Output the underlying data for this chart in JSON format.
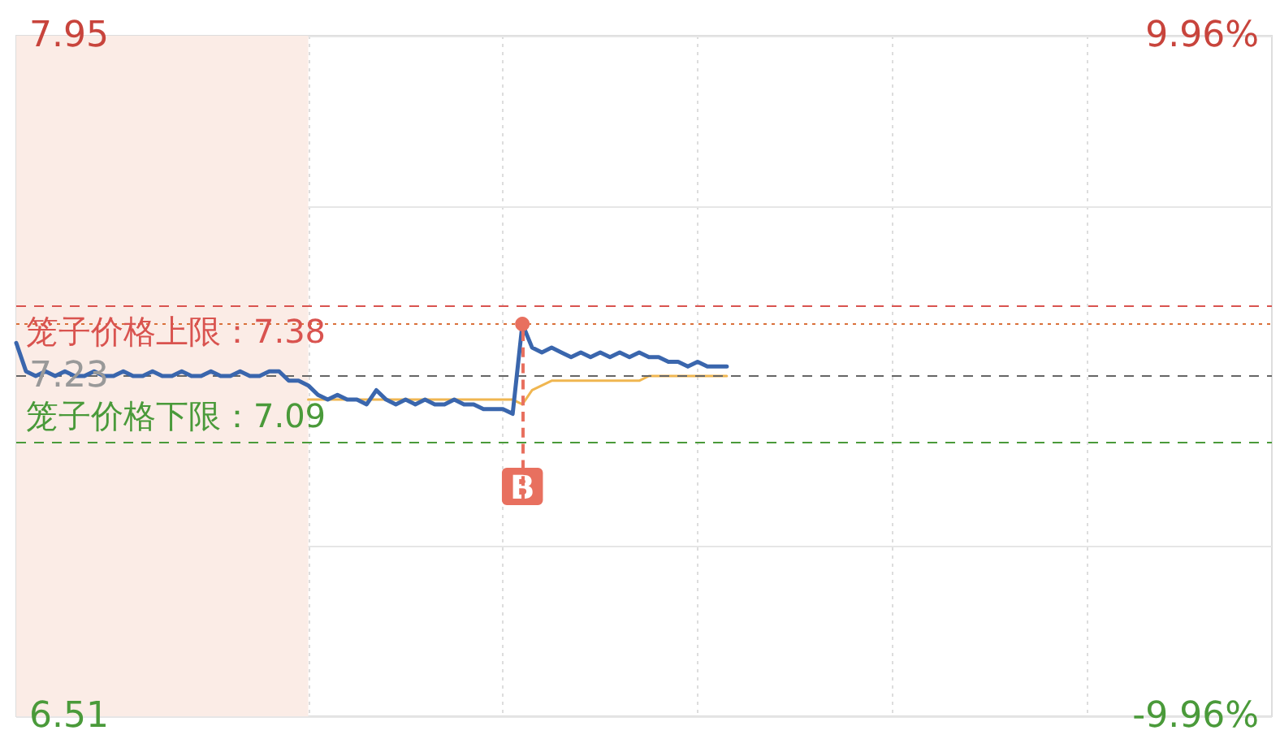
{
  "chart_data": {
    "type": "line",
    "categories": [
      null,
      null,
      null,
      null,
      null,
      null,
      null,
      null,
      null,
      null,
      null,
      null,
      null,
      null,
      null,
      null,
      null,
      null,
      null,
      null,
      null,
      null,
      null,
      null,
      null,
      null,
      null,
      null,
      null,
      null,
      null,
      null,
      null,
      null,
      null,
      null,
      null,
      null,
      null,
      null,
      null,
      null,
      null,
      null,
      null,
      null,
      null,
      null,
      null,
      null,
      null,
      null,
      null,
      null,
      null,
      null,
      null,
      null,
      null,
      null,
      null,
      null,
      null,
      null,
      null,
      null,
      null,
      null,
      null,
      null,
      null,
      null,
      null,
      null,
      null,
      null,
      null,
      null,
      null,
      null,
      null,
      null,
      null,
      null,
      null,
      null,
      null,
      null,
      null,
      null,
      null,
      null,
      null,
      null,
      null,
      null,
      null,
      null,
      null,
      null,
      null,
      null,
      null,
      null,
      null,
      null,
      null,
      null,
      null,
      null,
      null,
      null,
      null,
      null,
      null,
      null,
      null,
      null,
      null,
      null,
      null,
      null,
      null,
      null,
      null,
      null,
      null,
      null,
      null,
      null
    ],
    "series": [
      {
        "color": "#3a66ad",
        "values": [
          7.3,
          7.24,
          7.23,
          7.24,
          7.23,
          7.24,
          7.23,
          7.23,
          7.24,
          7.23,
          7.23,
          7.24,
          7.23,
          7.23,
          7.24,
          7.23,
          7.23,
          7.24,
          7.23,
          7.23,
          7.24,
          7.23,
          7.23,
          7.24,
          7.23,
          7.23,
          7.24,
          7.24,
          7.22,
          7.22,
          7.21,
          7.19,
          7.18,
          7.19,
          7.18,
          7.18,
          7.17,
          7.2,
          7.18,
          7.17,
          7.18,
          7.17,
          7.18,
          7.17,
          7.17,
          7.18,
          7.17,
          7.17,
          7.16,
          7.16,
          7.16,
          7.15,
          7.34,
          7.29,
          7.28,
          7.29,
          7.28,
          7.27,
          7.28,
          7.27,
          7.28,
          7.27,
          7.28,
          7.27,
          7.28,
          7.27,
          7.27,
          7.26,
          7.26,
          7.25,
          7.26,
          7.25,
          7.25,
          7.25,
          null,
          null,
          null,
          null,
          null,
          null,
          null,
          null,
          null,
          null,
          null,
          null,
          null,
          null,
          null,
          null,
          null,
          null,
          null,
          null,
          null,
          null,
          null,
          null,
          null,
          null,
          null,
          null,
          null,
          null,
          null,
          null,
          null,
          null,
          null,
          null,
          null,
          null,
          null,
          null,
          null,
          null,
          null,
          null,
          null,
          null,
          null,
          null,
          null,
          null,
          null,
          null,
          null,
          null,
          null,
          null
        ],
        "value_labels": [
          null,
          null,
          null,
          null,
          null,
          null,
          null,
          null,
          null,
          null,
          null,
          null,
          null,
          null,
          null,
          null,
          null,
          null,
          null,
          null,
          null,
          null,
          null,
          null,
          null,
          null,
          null,
          null,
          null,
          null,
          null,
          null,
          null,
          null,
          null,
          null,
          null,
          null,
          null,
          null,
          null,
          null,
          null,
          null,
          null,
          null,
          null,
          null,
          null,
          null,
          null,
          null,
          "B",
          null,
          null,
          null,
          null,
          null,
          null,
          null,
          null,
          null,
          null,
          null,
          null,
          null,
          null,
          null,
          null,
          null,
          null,
          null,
          null,
          null,
          null,
          null,
          null,
          null,
          null,
          null,
          null,
          null,
          null,
          null,
          null,
          null,
          null,
          null,
          null,
          null,
          null,
          null,
          null,
          null,
          null,
          null,
          null,
          null,
          null,
          null,
          null,
          null,
          null,
          null,
          null,
          null,
          null,
          null,
          null,
          null,
          null,
          null,
          null,
          null,
          null,
          null,
          null,
          null,
          null,
          null,
          null,
          null,
          null,
          null,
          null,
          null,
          null,
          null,
          null,
          null
        ]
      },
      {
        "color": "#f0b650",
        "values": [
          null,
          null,
          null,
          null,
          null,
          null,
          null,
          null,
          null,
          null,
          null,
          null,
          null,
          null,
          null,
          null,
          null,
          null,
          null,
          null,
          null,
          null,
          null,
          null,
          null,
          null,
          null,
          null,
          null,
          null,
          7.18,
          7.18,
          7.18,
          7.18,
          7.18,
          7.18,
          7.18,
          7.18,
          7.18,
          7.18,
          7.18,
          7.18,
          7.18,
          7.18,
          7.18,
          7.18,
          7.18,
          7.18,
          7.18,
          7.18,
          7.18,
          7.18,
          7.17,
          7.2,
          7.21,
          7.22,
          7.22,
          7.22,
          7.22,
          7.22,
          7.22,
          7.22,
          7.22,
          7.22,
          7.22,
          7.23,
          7.23,
          7.23,
          7.23,
          7.23,
          7.23,
          7.23,
          7.23,
          7.23,
          null,
          null,
          null,
          null,
          null,
          null,
          null,
          null,
          null,
          null,
          null,
          null,
          null,
          null,
          null,
          null,
          null,
          null,
          null,
          null,
          null,
          null,
          null,
          null,
          null,
          null,
          null,
          null,
          null,
          null,
          null,
          null,
          null,
          null,
          null,
          null,
          null,
          null,
          null,
          null,
          null,
          null,
          null,
          null,
          null,
          null,
          null,
          null,
          null,
          null,
          null,
          null,
          null,
          null,
          null,
          null
        ]
      }
    ],
    "ylim": [
      6.51,
      7.95
    ],
    "yticks": [
      6.51,
      {
        "value": 6.87,
        "label": null
      },
      7.23,
      {
        "value": 7.59,
        "label": null
      },
      7.95
    ],
    "y2lim": [
      -9.96,
      9.96
    ],
    "y2ticks": [
      {
        "value": -9.96,
        "label": "-9.96%"
      },
      {
        "value": 9.96,
        "label": "9.96%"
      }
    ],
    "tick_labels": "y",
    "grid": true,
    "line_style": "solid",
    "ref_lines": [
      {
        "axis": "y",
        "value": 7.38,
        "label": "笼子价格上限：7.38",
        "color": "#d9534f",
        "line_style": "dashed"
      },
      {
        "axis": "y",
        "value": 7.34,
        "color": "#d9703a",
        "line_style": "dotted"
      },
      {
        "axis": "y",
        "value": 7.23,
        "color": "#666666",
        "line_style": "dashed"
      },
      {
        "axis": "y",
        "value": 7.09,
        "label": "笼子价格下限：7.09",
        "color": "#4a9a3a",
        "line_style": "dashed"
      }
    ]
  }
}
